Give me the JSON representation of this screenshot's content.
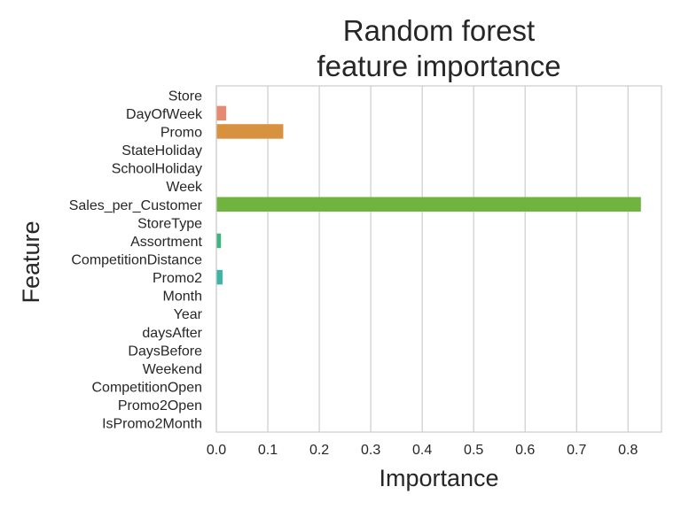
{
  "chart_data": {
    "type": "bar",
    "orientation": "horizontal",
    "title": [
      "Random forest",
      "feature importance"
    ],
    "xlabel": "Importance",
    "ylabel": "Feature",
    "xlim": [
      0.0,
      0.865
    ],
    "xticks": [
      "0.0",
      "0.1",
      "0.2",
      "0.3",
      "0.4",
      "0.5",
      "0.6",
      "0.7",
      "0.8"
    ],
    "grid": "vertical",
    "categories": [
      "Store",
      "DayOfWeek",
      "Promo",
      "StateHoliday",
      "SchoolHoliday",
      "Week",
      "Sales_per_Customer",
      "StoreType",
      "Assortment",
      "CompetitionDistance",
      "Promo2",
      "Month",
      "Year",
      "daysAfter",
      "DaysBefore",
      "Weekend",
      "CompetitionOpen",
      "Promo2Open",
      "IsPromo2Month"
    ],
    "values": [
      0.0,
      0.019,
      0.13,
      0.0,
      0.0,
      0.0,
      0.825,
      0.0,
      0.009,
      0.0,
      0.012,
      0.0,
      0.0,
      0.0,
      0.0,
      0.0,
      0.0,
      0.0,
      0.0
    ],
    "colors": [
      "#e8665e",
      "#e88a6f",
      "#d8913f",
      "#c79f35",
      "#b3aa36",
      "#9db234",
      "#6fb43f",
      "#3eb561",
      "#3bb77e",
      "#3bb694",
      "#3ab5a6",
      "#3bb3b8",
      "#3eb0ca",
      "#45aadb",
      "#75a0e6",
      "#a496e8",
      "#c88be6",
      "#e07fd4",
      "#eb72b2"
    ]
  }
}
